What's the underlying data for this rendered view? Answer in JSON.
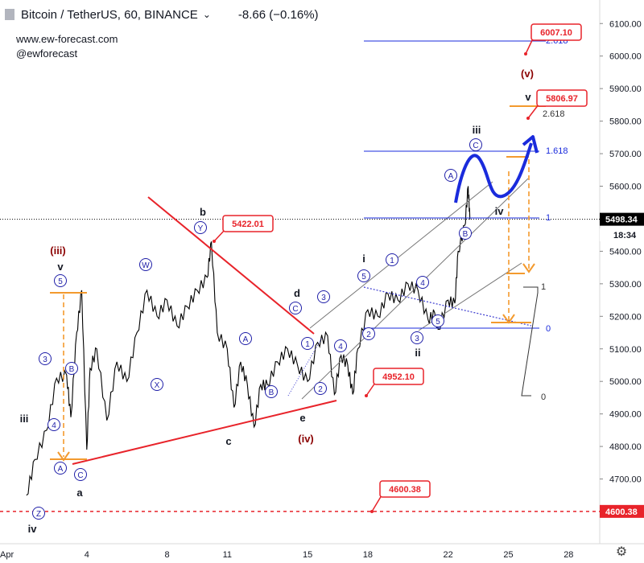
{
  "header": {
    "symbol": "Bitcoin / TetherUS, 60, BINANCE",
    "change": "-8.66 (−0.16%)",
    "website": "www.ew-forecast.com",
    "handle": "@ewforecast"
  },
  "chart_data": {
    "type": "line",
    "series": [
      {
        "values": [
          [
            "2020-04-01 00:00",
            4650
          ],
          [
            "2020-04-01 10:00",
            4760
          ],
          [
            "2020-04-02 00:00",
            4850
          ],
          [
            "2020-04-02 12:00",
            5010
          ],
          [
            "2020-04-03 00:00",
            5020
          ],
          [
            "2020-04-03 05:00",
            4890
          ],
          [
            "2020-04-03 12:00",
            5150
          ],
          [
            "2020-04-03 18:00",
            5280
          ],
          [
            "2020-04-04 00:00",
            4790
          ],
          [
            "2020-04-04 04:00",
            5040
          ],
          [
            "2020-04-04 12:00",
            5100
          ],
          [
            "2020-04-05 00:00",
            4880
          ],
          [
            "2020-04-05 12:00",
            5060
          ],
          [
            "2020-04-06 00:00",
            5000
          ],
          [
            "2020-04-06 12:00",
            5150
          ],
          [
            "2020-04-07 00:00",
            5280
          ],
          [
            "2020-04-07 12:00",
            5200
          ],
          [
            "2020-04-08 00:00",
            5250
          ],
          [
            "2020-04-08 12:00",
            5170
          ],
          [
            "2020-04-09 00:00",
            5230
          ],
          [
            "2020-04-09 12:00",
            5280
          ],
          [
            "2020-04-10 00:00",
            5320
          ],
          [
            "2020-04-10 05:00",
            5430
          ],
          [
            "2020-04-10 12:00",
            5150
          ],
          [
            "2020-04-11 00:00",
            5100
          ],
          [
            "2020-04-11 08:00",
            4920
          ],
          [
            "2020-04-11 16:00",
            5060
          ],
          [
            "2020-04-12 00:00",
            4990
          ],
          [
            "2020-04-12 08:00",
            4860
          ],
          [
            "2020-04-12 16:00",
            4990
          ],
          [
            "2020-04-13 00:00",
            4990
          ],
          [
            "2020-04-13 12:00",
            5060
          ],
          [
            "2020-04-14 00:00",
            5100
          ],
          [
            "2020-04-14 12:00",
            5050
          ],
          [
            "2020-04-15 00:00",
            5000
          ],
          [
            "2020-04-15 12:00",
            5120
          ],
          [
            "2020-04-16 00:00",
            5140
          ],
          [
            "2020-04-16 08:00",
            4960
          ],
          [
            "2020-04-16 16:00",
            5080
          ],
          [
            "2020-04-17 00:00",
            5050
          ],
          [
            "2020-04-17 06:00",
            4960
          ],
          [
            "2020-04-17 12:00",
            5100
          ],
          [
            "2020-04-18 00:00",
            5220
          ],
          [
            "2020-04-18 12:00",
            5200
          ],
          [
            "2020-04-19 00:00",
            5270
          ],
          [
            "2020-04-19 12:00",
            5250
          ],
          [
            "2020-04-20 00:00",
            5300
          ],
          [
            "2020-04-20 12:00",
            5280
          ],
          [
            "2020-04-21 00:00",
            5190
          ],
          [
            "2020-04-21 08:00",
            5210
          ],
          [
            "2020-04-21 12:00",
            5160
          ],
          [
            "2020-04-22 00:00",
            5250
          ],
          [
            "2020-04-22 08:00",
            5240
          ],
          [
            "2020-04-22 12:00",
            5400
          ],
          [
            "2020-04-22 20:00",
            5480
          ],
          [
            "2020-04-23 00:00",
            5600
          ],
          [
            "2020-04-23 02:00",
            5498
          ]
        ]
      }
    ],
    "x_ticks": [
      "Apr",
      "4",
      "8",
      "11",
      "15",
      "18",
      "22",
      "25",
      "28"
    ],
    "y_ticks": [
      "4700.00",
      "4800.00",
      "4900.00",
      "5000.00",
      "5100.00",
      "5200.00",
      "5300.00",
      "5400.00",
      "5500.00",
      "5600.00",
      "5700.00",
      "5800.00",
      "5900.00",
      "6000.00",
      "6100.00"
    ],
    "ylim": [
      4590,
      6140
    ],
    "y_axis_position": "right",
    "last_price": "5498.34",
    "countdown": "18:34",
    "price_labels": [
      {
        "text": "6007.10",
        "value": 6007.1
      },
      {
        "text": "5806.97",
        "value": 5806.97
      },
      {
        "text": "5422.01",
        "value": 5422.01
      },
      {
        "text": "4952.10",
        "value": 4952.1
      },
      {
        "text": "4600.38",
        "value": 4600.38
      }
    ],
    "axis_tag": "4600.38",
    "fib_labels": [
      "2.618",
      "2.618",
      "1.618",
      "1",
      "0",
      "1",
      "0"
    ],
    "wave_labels_plain": [
      "iii",
      "iv",
      "a",
      "b",
      "c",
      "d",
      "e",
      "v",
      "i",
      "ii",
      "iii",
      "iv",
      "v"
    ],
    "wave_labels_major": [
      "(iii)",
      "(iv)",
      "(v)"
    ],
    "wave_labels_circled": [
      "Z",
      "A",
      "C",
      "3",
      "4",
      "5",
      "B",
      "W",
      "X",
      "Y",
      "A",
      "B",
      "C",
      "1",
      "2",
      "3",
      "4",
      "5",
      "1",
      "2",
      "3",
      "4",
      "5",
      "A",
      "B",
      "C"
    ],
    "colors": {
      "candles": "#000000",
      "wave_label": "#1f1fa8",
      "support": "#e8232a",
      "projection": "#1a2bdc",
      "target_arrow": "#f39a2e",
      "channel": "#777777"
    }
  }
}
